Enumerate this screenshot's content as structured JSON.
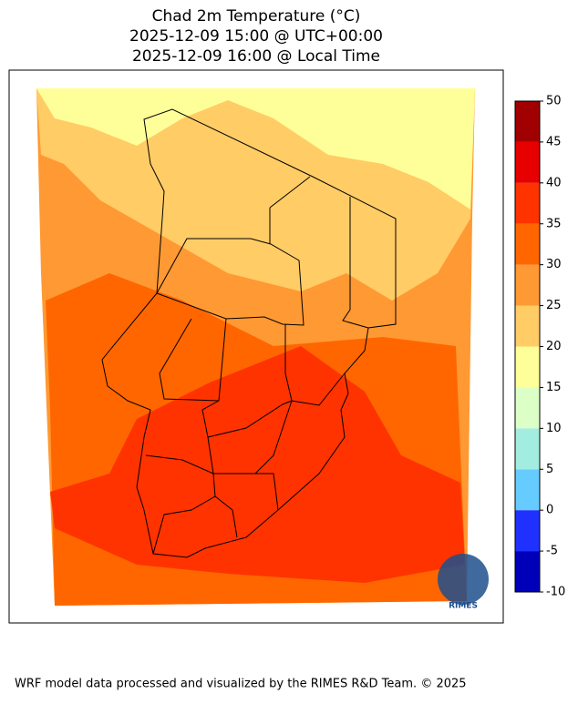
{
  "title": [
    "Chad 2m Temperature (°C)",
    "2025-12-09 15:00 @ UTC+00:00",
    "2025-12-09 16:00 @ Local Time"
  ],
  "colorbar": {
    "lim": [
      -10,
      50
    ],
    "ticks": [
      -10,
      -5,
      0,
      5,
      10,
      15,
      20,
      25,
      30,
      35,
      40,
      45,
      50
    ],
    "colors": [
      "#0000b8",
      "#1f30ff",
      "#66ccff",
      "#a3ece0",
      "#dcffc8",
      "#ffff99",
      "#ffcc66",
      "#ff9933",
      "#ff6600",
      "#ff3300",
      "#e60000",
      "#a00000"
    ]
  },
  "logo_text": "RIMES",
  "footer": "WRF model data processed and visualized by the RIMES R&D Team. © 2025"
}
